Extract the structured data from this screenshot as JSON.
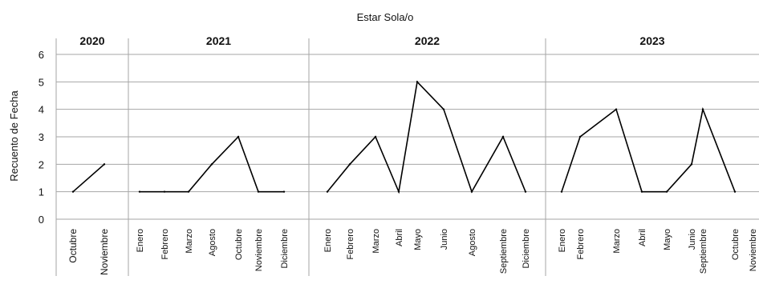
{
  "chart_data": {
    "type": "line",
    "title": "Estar Sola/o",
    "ylabel": "Recuento de Fecha",
    "ylim": [
      0,
      6
    ],
    "yticks": [
      0,
      1,
      2,
      3,
      4,
      5,
      6
    ],
    "grid": true,
    "series_color": "#000000",
    "panels": [
      {
        "year": "2020",
        "points": [
          {
            "month": "Octubre",
            "value": 1
          },
          {
            "month": "Noviembre",
            "value": 2
          }
        ]
      },
      {
        "year": "2021",
        "points": [
          {
            "month": "Enero",
            "value": 1
          },
          {
            "month": "Febrero",
            "value": 1
          },
          {
            "month": "Marzo",
            "value": 1
          },
          {
            "month": "Agosto",
            "value": 2
          },
          {
            "month": "Octubre",
            "value": 3
          },
          {
            "month": "Noviembre",
            "value": 1
          },
          {
            "month": "Diciembre",
            "value": 1
          }
        ]
      },
      {
        "year": "2022",
        "points": [
          {
            "month": "Enero",
            "value": 1
          },
          {
            "month": "Febrero",
            "value": 2
          },
          {
            "month": "Marzo",
            "value": 3
          },
          {
            "month": "Abril",
            "value": 1
          },
          {
            "month": "Mayo",
            "value": 5
          },
          {
            "month": "Junio",
            "value": 4
          },
          {
            "month": "Agosto",
            "value": 1
          },
          {
            "month": "Septiembre",
            "value": 3
          },
          {
            "month": "Diciembre",
            "value": 1
          }
        ]
      },
      {
        "year": "2023",
        "points": [
          {
            "month": "Enero",
            "value": 1
          },
          {
            "month": "Febrero",
            "value": 3
          },
          {
            "month": "Marzo",
            "value": 4
          },
          {
            "month": "Abril",
            "value": 1
          },
          {
            "month": "Mayo",
            "value": 1
          },
          {
            "month": "Junio",
            "value": 2
          },
          {
            "month": "Septiembre",
            "value": 4
          },
          {
            "month": "Octubre",
            "value": 1
          },
          {
            "month": "Noviembre",
            "value": null
          }
        ]
      }
    ]
  }
}
